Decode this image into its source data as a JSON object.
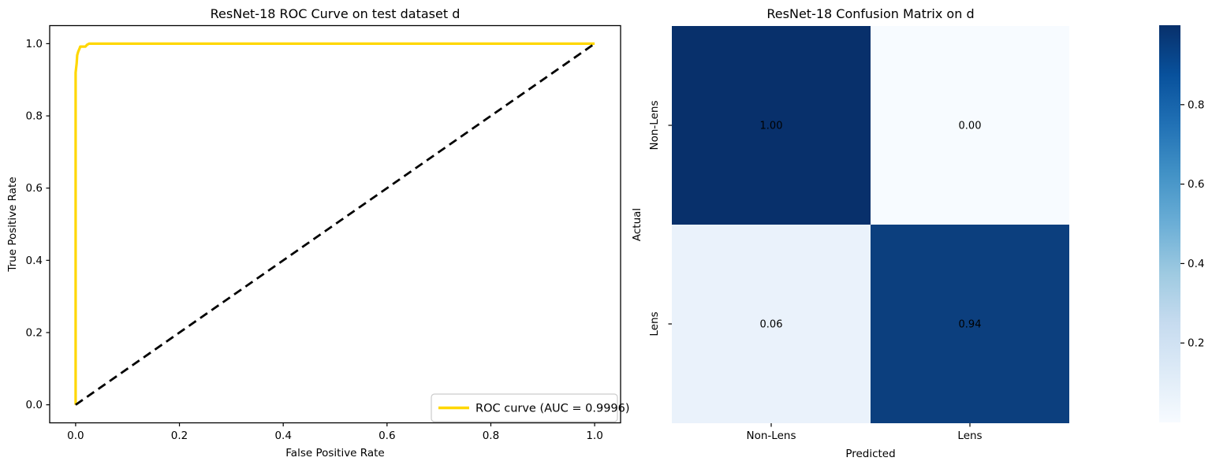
{
  "figure": {
    "background": "#ffffff",
    "text_color": "#000000"
  },
  "chart_data": [
    {
      "type": "line",
      "panel": "left",
      "title": "ResNet-18 ROC Curve on test dataset d",
      "xlabel": "False Positive Rate",
      "ylabel": "True Positive Rate",
      "xlim": [
        -0.05,
        1.05
      ],
      "ylim": [
        -0.05,
        1.05
      ],
      "x_ticks": [
        0.0,
        0.2,
        0.4,
        0.6,
        0.8,
        1.0
      ],
      "y_ticks": [
        0.0,
        0.2,
        0.4,
        0.6,
        0.8,
        1.0
      ],
      "grid": false,
      "series": [
        {
          "name": "ROC curve (AUC = 0.9996)",
          "color": "#ffd700",
          "line_style": "solid",
          "line_width": 3.2,
          "points": [
            [
              0,
              0
            ],
            [
              0,
              0.92
            ],
            [
              0.002,
              0.945
            ],
            [
              0.003,
              0.968
            ],
            [
              0.005,
              0.978
            ],
            [
              0.0075,
              0.986
            ],
            [
              0.009,
              0.992
            ],
            [
              0.019,
              0.992
            ],
            [
              0.022,
              0.997
            ],
            [
              0.026,
              1.0
            ],
            [
              1.0,
              1.0
            ]
          ]
        },
        {
          "name": "chance-diagonal",
          "color": "#000000",
          "line_style": "dashed",
          "line_width": 2.8,
          "points": [
            [
              0,
              0
            ],
            [
              1,
              1
            ]
          ]
        }
      ],
      "legend": {
        "position": "lower-right",
        "label": "ROC curve (AUC = 0.9996)",
        "auc": 0.9996,
        "swatch_color": "#ffd700",
        "border_color": "#cccccc"
      }
    },
    {
      "type": "heatmap",
      "panel": "right",
      "title": "ResNet-18 Confusion Matrix on d",
      "xlabel": "Predicted",
      "ylabel": "Actual",
      "x_categories": [
        "Non-Lens",
        "Lens"
      ],
      "y_categories": [
        "Non-Lens",
        "Lens"
      ],
      "values": [
        [
          1.0,
          0.0
        ],
        [
          0.06,
          0.94
        ]
      ],
      "cell_labels": [
        [
          "1.00",
          "0.00"
        ],
        [
          "0.06",
          "0.94"
        ]
      ],
      "cell_colors": [
        [
          "#08306b",
          "#f7fbff"
        ],
        [
          "#eaf2fb",
          "#0c3f7e"
        ]
      ],
      "cell_text_colors": [
        [
          "#ffffff",
          "#262626"
        ],
        [
          "#262626",
          "#ffffff"
        ]
      ],
      "colormap": "Blues",
      "colorbar": {
        "min": 0.0,
        "max": 1.0,
        "tick_values": [
          0.2,
          0.4,
          0.6,
          0.8
        ],
        "stops": [
          {
            "at": 0.0,
            "color": "#f7fbff"
          },
          {
            "at": 0.125,
            "color": "#deebf7"
          },
          {
            "at": 0.25,
            "color": "#c6dbef"
          },
          {
            "at": 0.375,
            "color": "#9ecae1"
          },
          {
            "at": 0.5,
            "color": "#6baed6"
          },
          {
            "at": 0.625,
            "color": "#4292c6"
          },
          {
            "at": 0.75,
            "color": "#2171b5"
          },
          {
            "at": 0.875,
            "color": "#08519c"
          },
          {
            "at": 1.0,
            "color": "#08306b"
          }
        ]
      }
    }
  ]
}
